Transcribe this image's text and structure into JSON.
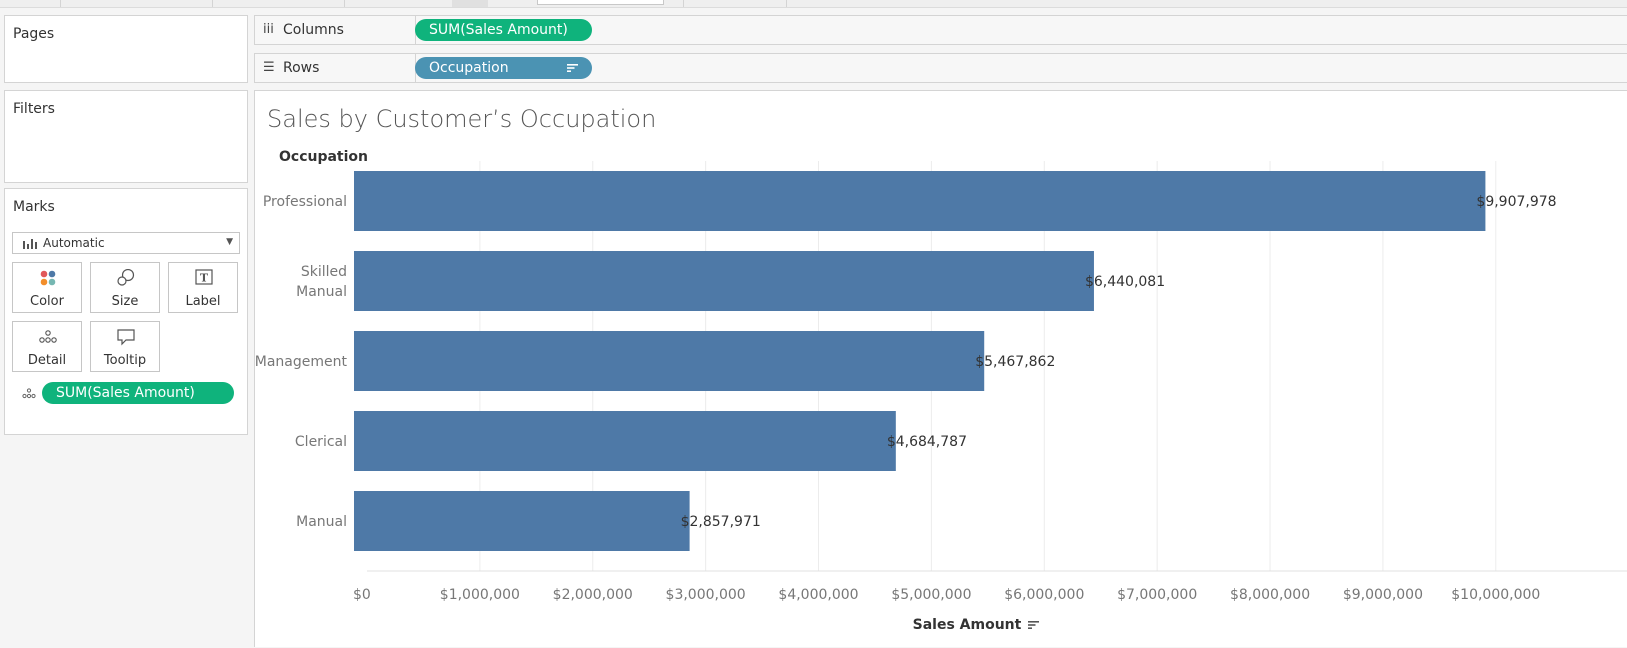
{
  "shelves": {
    "columns": {
      "label": "Columns",
      "pill": "SUM(Sales Amount)"
    },
    "rows": {
      "label": "Rows",
      "pill": "Occupation"
    }
  },
  "panels": {
    "pages": "Pages",
    "filters": "Filters",
    "marks": {
      "title": "Marks",
      "mark_type": "Automatic",
      "buttons": [
        "Color",
        "Size",
        "Label",
        "Detail",
        "Tooltip"
      ],
      "detail_pill": "SUM(Sales Amount)"
    }
  },
  "colors": {
    "bar": "#4e79a7",
    "pill_measure": "#0fb37c",
    "pill_dimension": "#4b93b3"
  },
  "chart_data": {
    "type": "bar",
    "orientation": "horizontal",
    "title": "Sales by Customer’s Occupation",
    "row_header": "Occupation",
    "xlabel": "Sales Amount",
    "categories": [
      "Professional",
      "Skilled Manual",
      "Management",
      "Clerical",
      "Manual"
    ],
    "values": [
      9907978,
      6440081,
      5467862,
      4684787,
      2857971
    ],
    "value_labels": [
      "$9,907,978",
      "$6,440,081",
      "$5,467,862",
      "$4,684,787",
      "$2,857,971"
    ],
    "xticks": [
      0,
      1000000,
      2000000,
      3000000,
      4000000,
      5000000,
      6000000,
      7000000,
      8000000,
      9000000,
      10000000
    ],
    "xtick_labels": [
      "$0",
      "$1,000,000",
      "$2,000,000",
      "$3,000,000",
      "$4,000,000",
      "$5,000,000",
      "$6,000,000",
      "$7,000,000",
      "$8,000,000",
      "$9,000,000",
      "$10,000,000"
    ],
    "xlim": [
      0,
      11000000
    ],
    "sorted": "descending",
    "grid": true
  }
}
